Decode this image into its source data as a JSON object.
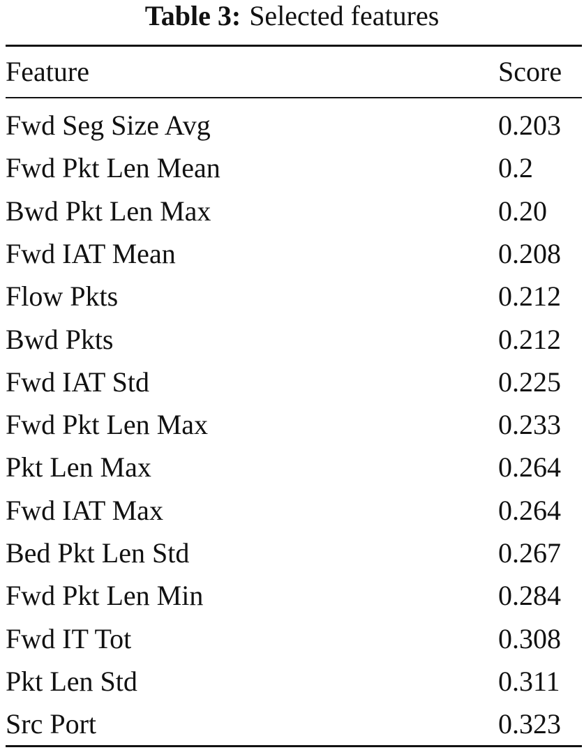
{
  "caption": {
    "label": "Table 3:",
    "text": "Selected features"
  },
  "table": {
    "header": [
      "Feature",
      "Score"
    ],
    "rows": [
      [
        "Fwd Seg Size Avg",
        "0.203"
      ],
      [
        "Fwd Pkt Len Mean",
        "0.2"
      ],
      [
        "Bwd Pkt Len Max",
        "0.20"
      ],
      [
        "Fwd IAT Mean",
        "0.208"
      ],
      [
        "Flow Pkts",
        "0.212"
      ],
      [
        "Bwd Pkts",
        "0.212"
      ],
      [
        "Fwd IAT Std",
        "0.225"
      ],
      [
        "Fwd Pkt Len Max",
        "0.233"
      ],
      [
        "Pkt Len Max",
        "0.264"
      ],
      [
        "Fwd IAT Max",
        "0.264"
      ],
      [
        "Bed Pkt Len Std",
        "0.267"
      ],
      [
        "Fwd Pkt Len Min",
        "0.284"
      ],
      [
        "Fwd IT Tot",
        "0.308"
      ],
      [
        "Pkt Len Std",
        "0.311"
      ],
      [
        "Src Port",
        "0.323"
      ]
    ]
  }
}
